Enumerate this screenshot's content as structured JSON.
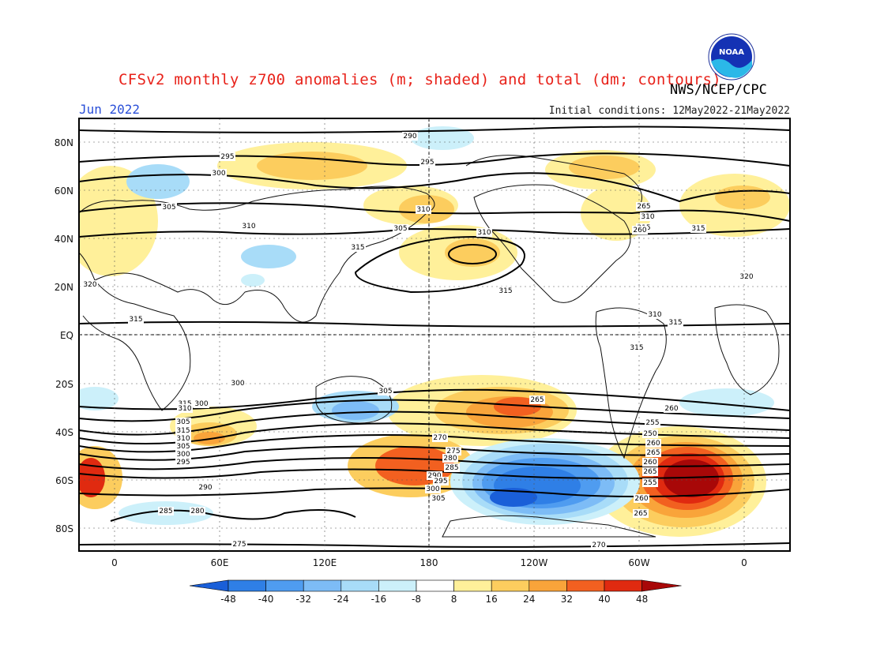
{
  "header": {
    "title": "CFSv2 monthly z700 anomalies (m; shaded) and total (dm; contours)",
    "agency": "NWS/NCEP/CPC",
    "logo_text": "NOAA",
    "month": "Jun 2022",
    "initial_conditions": "Initial conditions: 12May2022-21May2022"
  },
  "map": {
    "lat_labels": [
      "80N",
      "60N",
      "40N",
      "20N",
      "EQ",
      "20S",
      "40S",
      "60S",
      "80S"
    ],
    "lon_labels": [
      "0",
      "60E",
      "120E",
      "180",
      "120W",
      "60W",
      "0"
    ],
    "contour_labels": [
      "290",
      "295",
      "295",
      "300",
      "305",
      "310",
      "310",
      "315",
      "320",
      "315",
      "305",
      "300",
      "315",
      "310",
      "305",
      "300",
      "310",
      "315",
      "320",
      "315",
      "315",
      "315",
      "310",
      "305",
      "315",
      "310",
      "305",
      "300",
      "295",
      "290",
      "285",
      "280",
      "275",
      "270",
      "265",
      "260",
      "255",
      "250",
      "260",
      "265",
      "260",
      "265",
      "255",
      "260",
      "265",
      "270",
      "275",
      "280",
      "285",
      "290",
      "295",
      "300",
      "305",
      "310",
      "315",
      "260",
      "265"
    ]
  },
  "colorbar": {
    "ticks": [
      "-48",
      "-40",
      "-32",
      "-24",
      "-16",
      "-8",
      "8",
      "16",
      "24",
      "32",
      "40",
      "48"
    ],
    "colors": [
      "#1a5fd8",
      "#2f7fe6",
      "#4f9cf0",
      "#7dbcf6",
      "#a8dcf8",
      "#ccf0fa",
      "#ffffff",
      "#fff09a",
      "#fccd5e",
      "#f9a43a",
      "#f26020",
      "#e02a10",
      "#a80808"
    ]
  }
}
